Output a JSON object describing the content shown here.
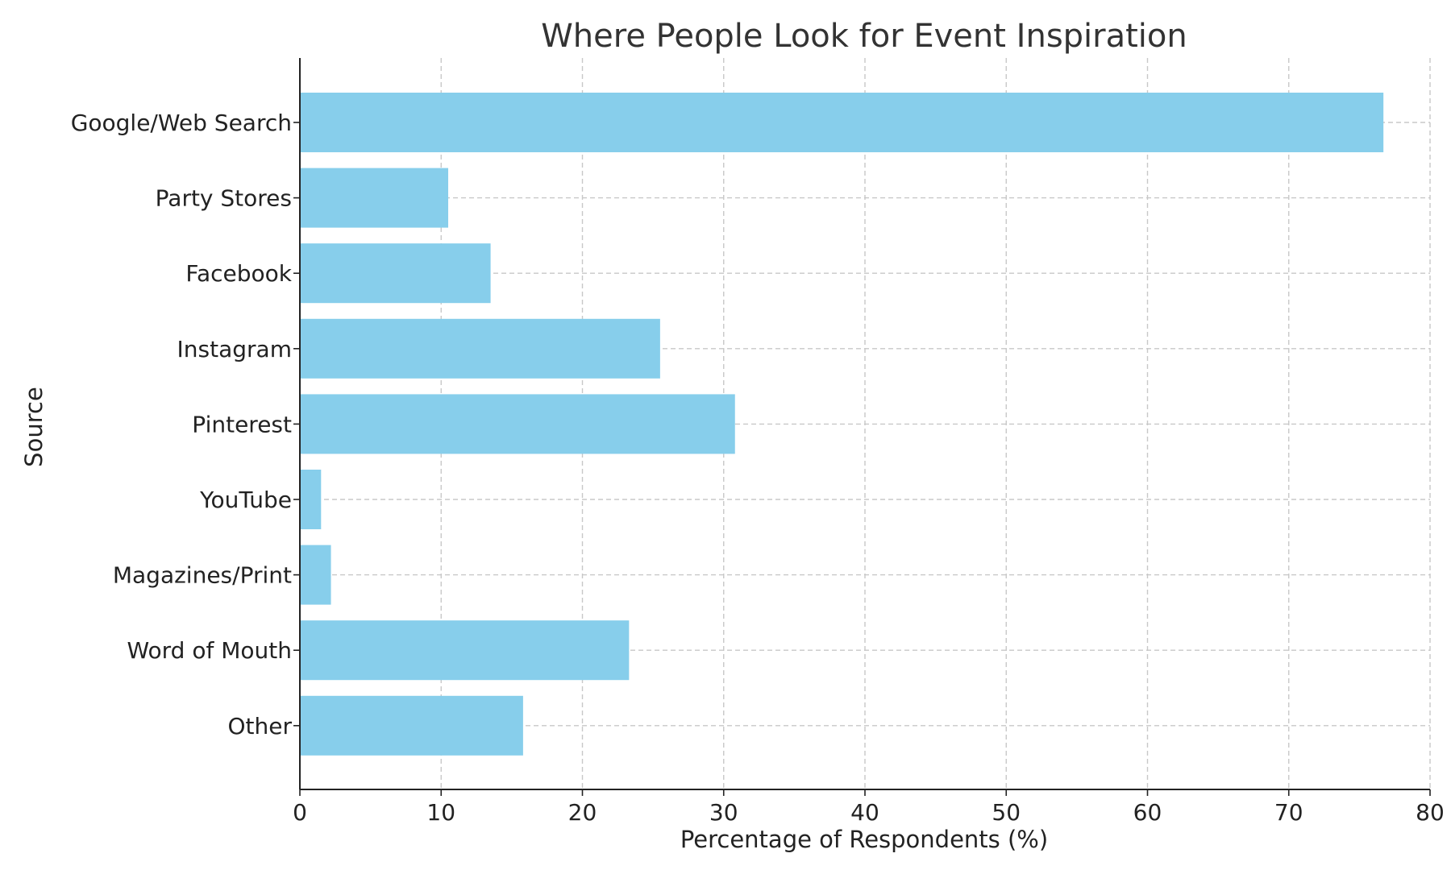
{
  "chart_data": {
    "type": "bar",
    "orientation": "horizontal",
    "title": "Where People Look for Event Inspiration",
    "xlabel": "Percentage of Respondents (%)",
    "ylabel": "Source",
    "categories": [
      "Google/Web Search",
      "Party Stores",
      "Facebook",
      "Instagram",
      "Pinterest",
      "YouTube",
      "Magazines/Print",
      "Word of Mouth",
      "Other"
    ],
    "values": [
      76.7,
      10.5,
      13.5,
      25.5,
      30.8,
      1.5,
      2.2,
      23.3,
      15.8
    ],
    "xlim": [
      0,
      80
    ],
    "xticks": [
      0,
      10,
      20,
      30,
      40,
      50,
      60,
      70,
      80
    ],
    "grid": true,
    "bar_color": "#87ceeb"
  }
}
